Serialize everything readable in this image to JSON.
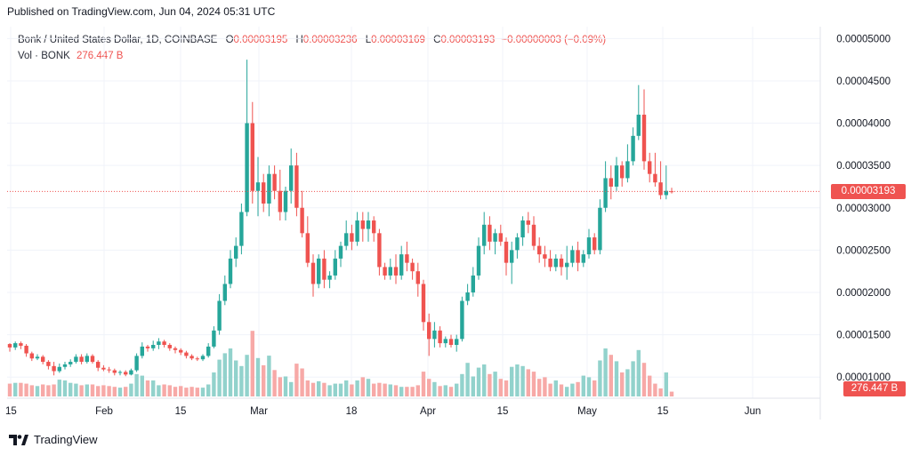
{
  "header": {
    "published": "Published on TradingView.com, Jun 04, 2024 05:31 UTC"
  },
  "legend": {
    "symbol": "Bonk / United States Dollar, 1D, COINBASE",
    "o_label": "O",
    "o_value": "0.00003195",
    "h_label": "H",
    "h_value": "0.00003236",
    "l_label": "L",
    "l_value": "0.00003169",
    "c_label": "C",
    "c_value": "0.00003193",
    "change": "−0.00000003 (−0.09%)",
    "vol_label": "Vol · BONK",
    "vol_value": "276.447 B"
  },
  "footer": {
    "brand": "TradingView"
  },
  "colors": {
    "up": "#26a69a",
    "down": "#ef5350",
    "up_volume": "#92d2cc",
    "down_volume": "#f7a9a7",
    "grid": "#f0f3fa",
    "axis_text": "#131722"
  },
  "chart_data": {
    "type": "candlestick",
    "y_ticks": [
      "0.00005000",
      "0.00004500",
      "0.00004000",
      "0.00003500",
      "0.00003000",
      "0.00002500",
      "0.00002000",
      "0.00001500",
      "0.00001000"
    ],
    "ylim": [
      7.5e-06,
      5.14e-05
    ],
    "x_ticks": [
      "15",
      "Feb",
      "15",
      "Mar",
      "18",
      "Apr",
      "15",
      "May",
      "15",
      "Jun"
    ],
    "last_price_label": "0.00003193",
    "last_price": 3.193e-05,
    "last_volume_label": "276.447 B",
    "ohlc": [
      [
        1.39,
        1.4,
        1.3,
        1.35
      ],
      [
        1.35,
        1.42,
        1.32,
        1.4
      ],
      [
        1.4,
        1.42,
        1.33,
        1.37
      ],
      [
        1.37,
        1.39,
        1.24,
        1.28
      ],
      [
        1.28,
        1.3,
        1.19,
        1.22
      ],
      [
        1.22,
        1.27,
        1.2,
        1.24
      ],
      [
        1.24,
        1.26,
        1.15,
        1.18
      ],
      [
        1.18,
        1.2,
        1.09,
        1.13
      ],
      [
        1.13,
        1.18,
        1.02,
        1.07
      ],
      [
        1.07,
        1.16,
        1.05,
        1.12
      ],
      [
        1.12,
        1.18,
        1.09,
        1.15
      ],
      [
        1.15,
        1.21,
        1.12,
        1.18
      ],
      [
        1.18,
        1.27,
        1.16,
        1.24
      ],
      [
        1.24,
        1.27,
        1.15,
        1.18
      ],
      [
        1.18,
        1.28,
        1.16,
        1.25
      ],
      [
        1.25,
        1.27,
        1.16,
        1.18
      ],
      [
        1.18,
        1.2,
        1.07,
        1.11
      ],
      [
        1.11,
        1.14,
        1.07,
        1.09
      ],
      [
        1.09,
        1.12,
        1.05,
        1.08
      ],
      [
        1.08,
        1.1,
        1.02,
        1.05
      ],
      [
        1.05,
        1.08,
        1.02,
        1.06
      ],
      [
        1.06,
        1.08,
        1.01,
        1.03
      ],
      [
        1.03,
        1.1,
        1.02,
        1.08
      ],
      [
        1.08,
        1.28,
        1.06,
        1.25
      ],
      [
        1.25,
        1.41,
        1.22,
        1.36
      ],
      [
        1.36,
        1.38,
        1.3,
        1.34
      ],
      [
        1.34,
        1.43,
        1.31,
        1.38
      ],
      [
        1.38,
        1.46,
        1.33,
        1.42
      ],
      [
        1.42,
        1.44,
        1.35,
        1.38
      ],
      [
        1.38,
        1.4,
        1.31,
        1.34
      ],
      [
        1.34,
        1.36,
        1.28,
        1.32
      ],
      [
        1.32,
        1.34,
        1.26,
        1.29
      ],
      [
        1.29,
        1.31,
        1.22,
        1.25
      ],
      [
        1.25,
        1.27,
        1.2,
        1.22
      ],
      [
        1.22,
        1.24,
        1.19,
        1.21
      ],
      [
        1.21,
        1.27,
        1.19,
        1.25
      ],
      [
        1.25,
        1.4,
        1.23,
        1.36
      ],
      [
        1.36,
        1.6,
        1.34,
        1.55
      ],
      [
        1.55,
        1.98,
        1.5,
        1.9
      ],
      [
        1.9,
        2.2,
        1.85,
        2.1
      ],
      [
        2.1,
        2.5,
        2.05,
        2.4
      ],
      [
        2.4,
        2.65,
        2.3,
        2.55
      ],
      [
        2.55,
        3.05,
        2.45,
        2.95
      ],
      [
        2.95,
        4.75,
        2.9,
        4
      ],
      [
        4,
        4.25,
        3.05,
        3.2
      ],
      [
        3.2,
        3.6,
        2.9,
        3.3
      ],
      [
        3.3,
        3.4,
        2.95,
        3.05
      ],
      [
        3.05,
        3.5,
        2.9,
        3.4
      ],
      [
        3.4,
        3.5,
        3.1,
        3.2
      ],
      [
        3.2,
        3.45,
        2.85,
        2.95
      ],
      [
        2.95,
        3.25,
        2.85,
        3.2
      ],
      [
        3.2,
        3.7,
        3.05,
        3.5
      ],
      [
        3.5,
        3.65,
        2.9,
        3
      ],
      [
        3,
        3.2,
        2.65,
        2.7
      ],
      [
        2.7,
        2.9,
        2.3,
        2.35
      ],
      [
        2.35,
        2.45,
        1.95,
        2.1
      ],
      [
        2.1,
        2.45,
        2.05,
        2.4
      ],
      [
        2.4,
        2.5,
        2.05,
        2.15
      ],
      [
        2.15,
        2.25,
        2.05,
        2.2
      ],
      [
        2.2,
        2.5,
        2.15,
        2.4
      ],
      [
        2.4,
        2.6,
        2.3,
        2.55
      ],
      [
        2.55,
        2.85,
        2.5,
        2.7
      ],
      [
        2.7,
        2.8,
        2.5,
        2.6
      ],
      [
        2.6,
        2.95,
        2.55,
        2.85
      ],
      [
        2.85,
        2.95,
        2.6,
        2.75
      ],
      [
        2.75,
        2.95,
        2.6,
        2.85
      ],
      [
        2.85,
        2.9,
        2.6,
        2.7
      ],
      [
        2.7,
        2.75,
        2.2,
        2.3
      ],
      [
        2.3,
        2.35,
        2.15,
        2.2
      ],
      [
        2.2,
        2.4,
        2.15,
        2.3
      ],
      [
        2.3,
        2.45,
        2.1,
        2.2
      ],
      [
        2.2,
        2.55,
        2.15,
        2.45
      ],
      [
        2.45,
        2.6,
        2.25,
        2.35
      ],
      [
        2.35,
        2.4,
        2.15,
        2.25
      ],
      [
        2.25,
        2.35,
        1.95,
        2.1
      ],
      [
        2.1,
        2.15,
        1.55,
        1.65
      ],
      [
        1.65,
        1.75,
        1.25,
        1.45
      ],
      [
        1.45,
        1.65,
        1.35,
        1.55
      ],
      [
        1.55,
        1.6,
        1.35,
        1.4
      ],
      [
        1.4,
        1.48,
        1.35,
        1.45
      ],
      [
        1.45,
        1.5,
        1.35,
        1.38
      ],
      [
        1.38,
        1.5,
        1.3,
        1.45
      ],
      [
        1.45,
        1.95,
        1.42,
        1.9
      ],
      [
        1.9,
        2.1,
        1.85,
        2
      ],
      [
        2,
        2.3,
        1.95,
        2.2
      ],
      [
        2.2,
        2.65,
        2.15,
        2.55
      ],
      [
        2.55,
        2.95,
        2.45,
        2.8
      ],
      [
        2.8,
        2.9,
        2.5,
        2.6
      ],
      [
        2.6,
        2.75,
        2.45,
        2.7
      ],
      [
        2.7,
        2.8,
        2.55,
        2.6
      ],
      [
        2.6,
        2.65,
        2.2,
        2.35
      ],
      [
        2.35,
        2.6,
        2.1,
        2.5
      ],
      [
        2.5,
        2.7,
        2.4,
        2.65
      ],
      [
        2.65,
        2.9,
        2.55,
        2.85
      ],
      [
        2.85,
        2.95,
        2.7,
        2.8
      ],
      [
        2.8,
        2.9,
        2.5,
        2.55
      ],
      [
        2.55,
        2.65,
        2.35,
        2.45
      ],
      [
        2.45,
        2.55,
        2.3,
        2.4
      ],
      [
        2.4,
        2.5,
        2.25,
        2.3
      ],
      [
        2.3,
        2.45,
        2.25,
        2.4
      ],
      [
        2.4,
        2.45,
        2.2,
        2.3
      ],
      [
        2.3,
        2.55,
        2.15,
        2.35
      ],
      [
        2.35,
        2.55,
        2.3,
        2.5
      ],
      [
        2.5,
        2.6,
        2.25,
        2.35
      ],
      [
        2.35,
        2.5,
        2.3,
        2.45
      ],
      [
        2.45,
        2.75,
        2.4,
        2.65
      ],
      [
        2.65,
        2.7,
        2.45,
        2.5
      ],
      [
        2.5,
        3.1,
        2.45,
        3
      ],
      [
        3,
        3.55,
        2.95,
        3.35
      ],
      [
        3.35,
        3.5,
        3.1,
        3.25
      ],
      [
        3.25,
        3.6,
        3.2,
        3.5
      ],
      [
        3.5,
        3.55,
        3.25,
        3.35
      ],
      [
        3.35,
        3.75,
        3.3,
        3.55
      ],
      [
        3.55,
        3.95,
        3.5,
        3.85
      ],
      [
        3.85,
        4.45,
        3.8,
        4.1
      ],
      [
        4.1,
        4.4,
        3.45,
        3.55
      ],
      [
        3.55,
        3.65,
        3.3,
        3.4
      ],
      [
        3.4,
        3.65,
        3.25,
        3.3
      ],
      [
        3.3,
        3.55,
        3.1,
        3.15
      ],
      [
        3.15,
        3.5,
        3.1,
        3.2
      ],
      [
        3.195,
        3.236,
        3.169,
        3.193
      ]
    ],
    "volume_ratio": [
      0.16,
      0.17,
      0.17,
      0.16,
      0.14,
      0.13,
      0.15,
      0.14,
      0.15,
      0.21,
      0.2,
      0.17,
      0.16,
      0.14,
      0.15,
      0.15,
      0.13,
      0.14,
      0.13,
      0.12,
      0.11,
      0.12,
      0.16,
      0.28,
      0.26,
      0.2,
      0.2,
      0.14,
      0.15,
      0.14,
      0.12,
      0.13,
      0.11,
      0.12,
      0.11,
      0.11,
      0.15,
      0.3,
      0.46,
      0.54,
      0.6,
      0.45,
      0.38,
      0.52,
      0.82,
      0.48,
      0.39,
      0.51,
      0.33,
      0.24,
      0.25,
      0.18,
      0.41,
      0.35,
      0.2,
      0.17,
      0.19,
      0.17,
      0.14,
      0.16,
      0.16,
      0.2,
      0.15,
      0.2,
      0.24,
      0.22,
      0.16,
      0.17,
      0.16,
      0.15,
      0.14,
      0.12,
      0.12,
      0.12,
      0.14,
      0.31,
      0.22,
      0.18,
      0.13,
      0.14,
      0.12,
      0.16,
      0.28,
      0.42,
      0.25,
      0.36,
      0.4,
      0.28,
      0.31,
      0.22,
      0.2,
      0.37,
      0.4,
      0.38,
      0.34,
      0.31,
      0.22,
      0.24,
      0.16,
      0.2,
      0.15,
      0.12,
      0.16,
      0.18,
      0.26,
      0.24,
      0.2,
      0.45,
      0.6,
      0.52,
      0.44,
      0.3,
      0.34,
      0.44,
      0.58,
      0.42,
      0.26,
      0.16,
      0.1,
      0.3,
      0.06
    ]
  }
}
